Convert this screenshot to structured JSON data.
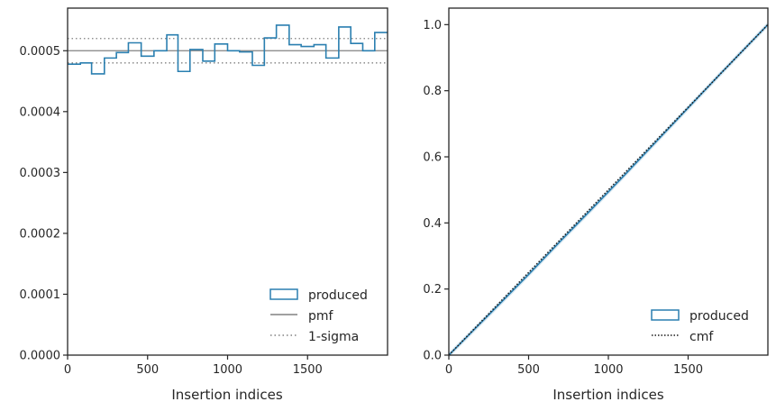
{
  "chart_data": [
    {
      "type": "line",
      "xlabel": "Insertion indices",
      "ylabel": "",
      "xlim": [
        0,
        2000
      ],
      "ylim": [
        0,
        0.00057
      ],
      "xticks": [
        0,
        500,
        1000,
        1500
      ],
      "xtick_labels": [
        "0",
        "500",
        "1000",
        "1500"
      ],
      "yticks": [
        0,
        0.0001,
        0.0002,
        0.0003,
        0.0004,
        0.0005
      ],
      "ytick_labels": [
        "0.0000",
        "0.0001",
        "0.0002",
        "0.0003",
        "0.0004",
        "0.0005"
      ],
      "grid": false,
      "legend_position": "lower-right",
      "legend": [
        "produced",
        "pmf",
        "1-sigma"
      ],
      "series": [
        {
          "name": "produced",
          "style": "step",
          "color": "#2a7fb0",
          "bin_edges": [
            0,
            80,
            150,
            230,
            305,
            380,
            460,
            540,
            620,
            690,
            765,
            845,
            920,
            1000,
            1075,
            1155,
            1230,
            1305,
            1385,
            1460,
            1540,
            1615,
            1695,
            1770,
            1845,
            1920,
            2000
          ],
          "values": [
            0.000478,
            0.00048,
            0.000462,
            0.000488,
            0.000497,
            0.000513,
            0.000491,
            0.0005,
            0.000526,
            0.000466,
            0.000502,
            0.000483,
            0.000511,
            0.0005,
            0.000498,
            0.000476,
            0.000521,
            0.000542,
            0.00051,
            0.000507,
            0.00051,
            0.000488,
            0.000539,
            0.000512,
            0.0005,
            0.00053
          ]
        },
        {
          "name": "pmf",
          "style": "solid",
          "color": "#808080",
          "values": [
            0.0005
          ]
        },
        {
          "name": "1-sigma",
          "style": "dotted",
          "color": "#808080",
          "values": [
            0.00048,
            0.00052
          ]
        }
      ]
    },
    {
      "type": "line",
      "xlabel": "Insertion indices",
      "ylabel": "",
      "xlim": [
        0,
        2000
      ],
      "ylim": [
        0,
        1.05
      ],
      "xticks": [
        0,
        500,
        1000,
        1500
      ],
      "xtick_labels": [
        "0",
        "500",
        "1000",
        "1500"
      ],
      "yticks": [
        0,
        0.2,
        0.4,
        0.6,
        0.8,
        1.0
      ],
      "ytick_labels": [
        "0.0",
        "0.2",
        "0.4",
        "0.6",
        "0.8",
        "1.0"
      ],
      "grid": false,
      "legend_position": "lower-right",
      "legend": [
        "produced",
        "cmf"
      ],
      "series": [
        {
          "name": "produced",
          "style": "step",
          "color": "#2a7fb0",
          "x": [
            0,
            150,
            300,
            500,
            700,
            900,
            1100,
            1300,
            1500,
            1700,
            1850,
            2000
          ],
          "y": [
            0,
            0.073,
            0.146,
            0.244,
            0.345,
            0.444,
            0.544,
            0.646,
            0.748,
            0.85,
            0.925,
            1.0
          ]
        },
        {
          "name": "cmf",
          "style": "dotted",
          "color": "#1a1a1a",
          "x": [
            0,
            2000
          ],
          "y": [
            0,
            1.0
          ]
        }
      ]
    }
  ]
}
